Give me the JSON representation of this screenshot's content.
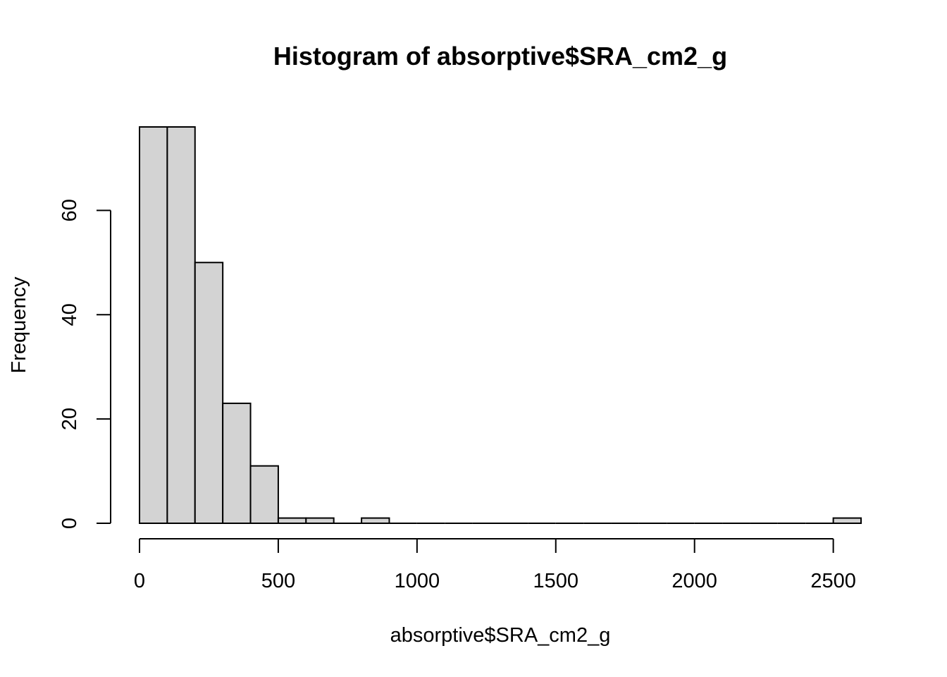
{
  "chart_data": {
    "type": "bar",
    "title": "Histogram of absorptive$SRA_cm2_g",
    "xlabel": "absorptive$SRA_cm2_g",
    "ylabel": "Frequency",
    "bins": [
      {
        "start": 0,
        "end": 100,
        "count": 76
      },
      {
        "start": 100,
        "end": 200,
        "count": 76
      },
      {
        "start": 200,
        "end": 300,
        "count": 50
      },
      {
        "start": 300,
        "end": 400,
        "count": 23
      },
      {
        "start": 400,
        "end": 500,
        "count": 11
      },
      {
        "start": 500,
        "end": 600,
        "count": 1
      },
      {
        "start": 600,
        "end": 700,
        "count": 1
      },
      {
        "start": 700,
        "end": 800,
        "count": 0
      },
      {
        "start": 800,
        "end": 900,
        "count": 1
      },
      {
        "start": 900,
        "end": 1000,
        "count": 0
      },
      {
        "start": 1000,
        "end": 1100,
        "count": 0
      },
      {
        "start": 1100,
        "end": 1200,
        "count": 0
      },
      {
        "start": 1200,
        "end": 1300,
        "count": 0
      },
      {
        "start": 1300,
        "end": 1400,
        "count": 0
      },
      {
        "start": 1400,
        "end": 1500,
        "count": 0
      },
      {
        "start": 1500,
        "end": 1600,
        "count": 0
      },
      {
        "start": 1600,
        "end": 1700,
        "count": 0
      },
      {
        "start": 1700,
        "end": 1800,
        "count": 0
      },
      {
        "start": 1800,
        "end": 1900,
        "count": 0
      },
      {
        "start": 1900,
        "end": 2000,
        "count": 0
      },
      {
        "start": 2000,
        "end": 2100,
        "count": 0
      },
      {
        "start": 2100,
        "end": 2200,
        "count": 0
      },
      {
        "start": 2200,
        "end": 2300,
        "count": 0
      },
      {
        "start": 2300,
        "end": 2400,
        "count": 0
      },
      {
        "start": 2400,
        "end": 2500,
        "count": 0
      },
      {
        "start": 2500,
        "end": 2600,
        "count": 1
      }
    ],
    "xticks": [
      0,
      500,
      1000,
      1500,
      2000,
      2500
    ],
    "yticks": [
      0,
      20,
      40,
      60
    ],
    "xlim": [
      0,
      2600
    ],
    "ylim": [
      0,
      76
    ],
    "bar_color": "#d3d3d3",
    "grid": false
  }
}
